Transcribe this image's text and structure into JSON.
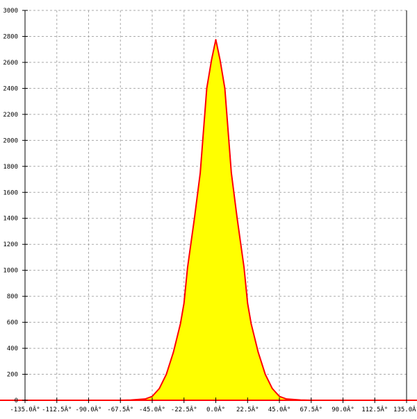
{
  "chart_data": {
    "type": "area",
    "title": "",
    "xlabel": "",
    "ylabel": "",
    "xlim": [
      -135,
      135
    ],
    "ylim": [
      0,
      3000
    ],
    "grid": true,
    "x_ticks": [
      -135,
      -112.5,
      -90,
      -67.5,
      -45,
      -22.5,
      0,
      22.5,
      45,
      67.5,
      90,
      112.5,
      135
    ],
    "x_tick_labels": [
      "-135.0Â°",
      "-112.5Â°",
      "-90.0Â°",
      "-67.5Â°",
      "-45.0Â°",
      "-22.5Â°",
      "0.0Â°",
      "22.5Â°",
      "45.0Â°",
      "67.5Â°",
      "90.0Â°",
      "112.5Â°",
      "135.0Â°"
    ],
    "y_ticks": [
      0,
      200,
      400,
      600,
      800,
      1000,
      1200,
      1400,
      1600,
      1800,
      2000,
      2200,
      2400,
      2600,
      2800,
      3000
    ],
    "y_tick_labels": [
      "0",
      "200",
      "400",
      "600",
      "800",
      "1000",
      "1200",
      "1400",
      "1600",
      "1800",
      "2000",
      "2200",
      "2400",
      "2600",
      "2800",
      "3000"
    ],
    "series": [
      {
        "x": [
          -67.5,
          -60,
          -50,
          -45,
          -40,
          -35,
          -30,
          -25,
          -22.5,
          -20,
          -15,
          -11,
          -6.4,
          -3,
          0,
          3,
          6.4,
          11,
          15,
          20,
          22.5,
          25,
          30,
          35,
          40,
          45,
          50,
          60,
          67.5
        ],
        "values": [
          0,
          2,
          10,
          30,
          90,
          200,
          370,
          590,
          747,
          1020,
          1410,
          1750,
          2400,
          2620,
          2775,
          2620,
          2400,
          1750,
          1410,
          1020,
          747,
          590,
          370,
          200,
          90,
          30,
          10,
          2,
          0
        ]
      }
    ],
    "colors": {
      "fill": "#ffff00",
      "line": "#ff0000",
      "baseline": "#ff0000",
      "axis": "#000000",
      "grid": "#aaaaaa"
    }
  }
}
